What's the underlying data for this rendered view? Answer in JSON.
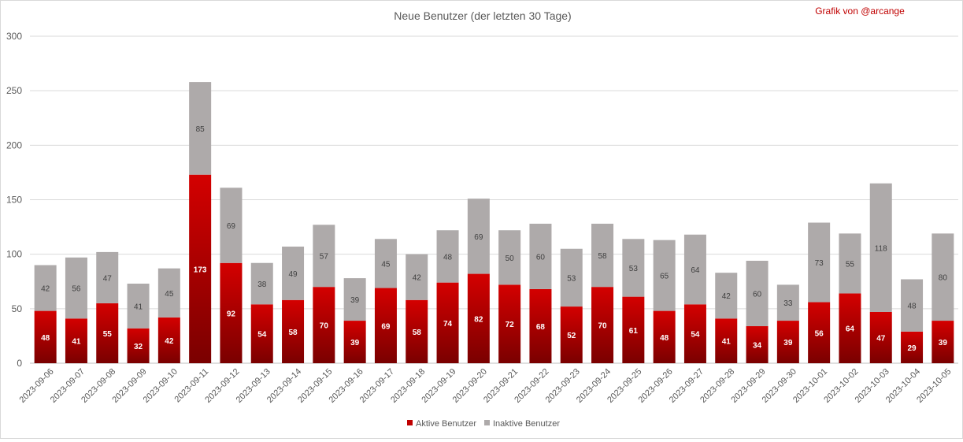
{
  "chart_data": {
    "type": "bar",
    "stacked": true,
    "title": "Neue Benutzer (der letzten 30 Tage)",
    "credit": "Grafik von @arcange",
    "xlabel": "",
    "ylabel": "",
    "ylim": [
      0,
      300
    ],
    "yticks": [
      0,
      50,
      100,
      150,
      200,
      250,
      300
    ],
    "grid": true,
    "legend_position": "bottom",
    "categories": [
      "2023-09-06",
      "2023-09-07",
      "2023-09-08",
      "2023-09-09",
      "2023-09-10",
      "2023-09-11",
      "2023-09-12",
      "2023-09-13",
      "2023-09-14",
      "2023-09-15",
      "2023-09-16",
      "2023-09-17",
      "2023-09-18",
      "2023-09-19",
      "2023-09-20",
      "2023-09-21",
      "2023-09-22",
      "2023-09-23",
      "2023-09-24",
      "2023-09-25",
      "2023-09-26",
      "2023-09-27",
      "2023-09-28",
      "2023-09-29",
      "2023-09-30",
      "2023-10-01",
      "2023-10-02",
      "2023-10-03",
      "2023-10-04",
      "2023-10-05"
    ],
    "series": [
      {
        "name": "Aktive Benutzer",
        "color": "#c00000",
        "values": [
          48,
          41,
          55,
          32,
          42,
          173,
          92,
          54,
          58,
          70,
          39,
          69,
          58,
          74,
          82,
          72,
          68,
          52,
          70,
          61,
          48,
          54,
          41,
          34,
          39,
          56,
          64,
          47,
          29,
          39
        ]
      },
      {
        "name": "Inaktive Benutzer",
        "color": "#aeaaaa",
        "values": [
          42,
          56,
          47,
          41,
          45,
          85,
          69,
          38,
          49,
          57,
          39,
          45,
          42,
          48,
          69,
          50,
          60,
          53,
          58,
          53,
          65,
          64,
          42,
          60,
          33,
          73,
          55,
          118,
          48,
          80
        ]
      }
    ]
  }
}
